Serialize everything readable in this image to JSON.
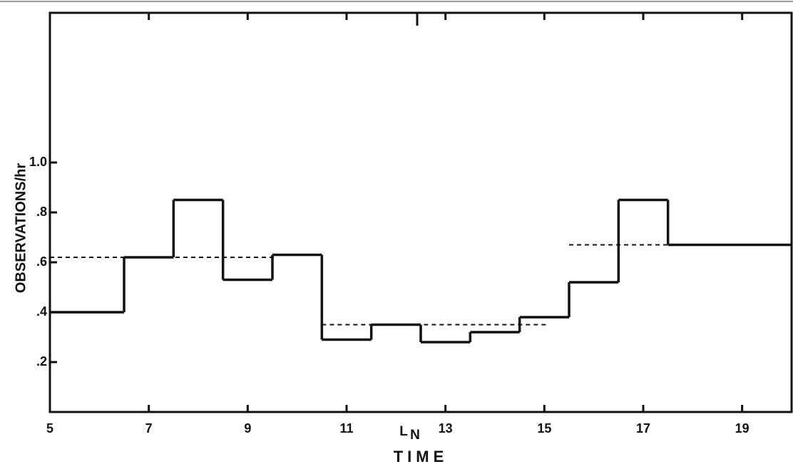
{
  "chart_data": {
    "type": "step-histogram",
    "ylabel": "OBSERVATIONS/hr",
    "xlabel": "TIME",
    "annotations": [
      "L",
      "N"
    ],
    "bins": [
      5,
      6.5,
      7.5,
      8.5,
      9.5,
      10.5,
      11.5,
      12.5,
      13.5,
      14.5,
      15.5,
      16.5,
      17.5,
      20
    ],
    "values": [
      0.4,
      0.62,
      0.85,
      0.53,
      0.63,
      0.29,
      0.35,
      0.28,
      0.32,
      0.38,
      0.52,
      0.85,
      0.67
    ],
    "means": [
      {
        "x": [
          5,
          9.6
        ],
        "value": 0.62
      },
      {
        "x": [
          10.5,
          15.1
        ],
        "value": 0.35
      },
      {
        "x": [
          15.5,
          18.9
        ],
        "value": 0.67
      }
    ],
    "color": "#111111",
    "xlim": [
      5,
      20
    ],
    "ylim": [
      0,
      1.6
    ],
    "xticks": [
      5,
      7,
      9,
      11,
      13,
      15,
      17,
      19
    ],
    "yticks": [
      {
        "value": 0.2,
        "label": ".2"
      },
      {
        "value": 0.4,
        "label": ".4"
      },
      {
        "value": 0.6,
        "label": ".6"
      },
      {
        "value": 0.8,
        "label": ".8"
      },
      {
        "value": 1.0,
        "label": "1.0"
      }
    ]
  }
}
